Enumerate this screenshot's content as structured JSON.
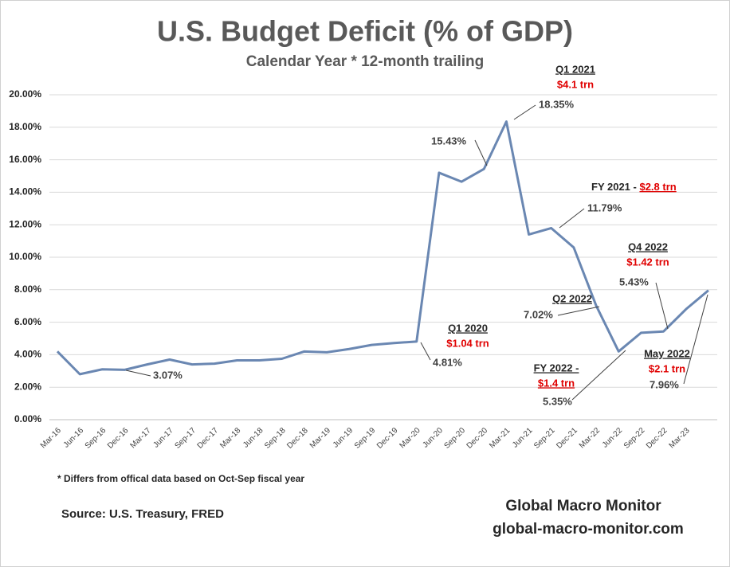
{
  "chart_data": {
    "type": "line",
    "title": "U.S. Budget Deficit (% of GDP)",
    "subtitle": "Calendar Year * 12-month trailing",
    "categories": [
      "Mar-16",
      "Jun-16",
      "Sep-16",
      "Dec-16",
      "Mar-17",
      "Jun-17",
      "Sep-17",
      "Dec-17",
      "Mar-18",
      "Jun-18",
      "Sep-18",
      "Dec-18",
      "Mar-19",
      "Jun-19",
      "Sep-19",
      "Dec-19",
      "Mar-20",
      "Jun-20",
      "Sep-20",
      "Dec-20",
      "Mar-21",
      "Jun-21",
      "Sep-21",
      "Dec-21",
      "Mar-22",
      "Jun-22",
      "Sep-22",
      "Dec-22",
      "Mar-23",
      null
    ],
    "values": [
      4.2,
      2.8,
      3.1,
      3.07,
      3.4,
      3.7,
      3.4,
      3.45,
      3.65,
      3.65,
      3.75,
      4.2,
      4.15,
      4.35,
      4.6,
      4.72,
      4.81,
      15.2,
      14.65,
      15.43,
      18.35,
      11.4,
      11.79,
      10.6,
      7.02,
      4.2,
      5.35,
      5.43,
      6.8,
      7.96
    ],
    "value_labels": [
      null,
      null,
      null,
      "3.07%",
      null,
      null,
      null,
      null,
      null,
      null,
      null,
      null,
      null,
      null,
      null,
      null,
      "4.81%",
      null,
      null,
      "15.43%",
      "18.35%",
      null,
      "11.79%",
      null,
      "7.02%",
      null,
      "5.35%",
      "5.43%",
      null,
      "7.96%"
    ],
    "color": "#6a87b2",
    "ylim": [
      0,
      20
    ],
    "yticks": [
      {
        "value": 0,
        "label": "0.00%"
      },
      {
        "value": 2,
        "label": "2.00%"
      },
      {
        "value": 4,
        "label": "4.00%"
      },
      {
        "value": 6,
        "label": "6.00%"
      },
      {
        "value": 8,
        "label": "8.00%"
      },
      {
        "value": 10,
        "label": "10.00%"
      },
      {
        "value": 12,
        "label": "12.00%"
      },
      {
        "value": 14,
        "label": "14.00%"
      },
      {
        "value": 16,
        "label": "16.00%"
      },
      {
        "value": 18,
        "label": "18.00%"
      },
      {
        "value": 20,
        "label": "20.00%"
      }
    ],
    "grid": true,
    "annotations": [
      {
        "label": "Q1 2021",
        "amount": "$4.1 trn"
      },
      {
        "label": "FY 2021 - ",
        "amount": "$2.8 trn"
      },
      {
        "label": "Q4 2022",
        "amount": "$1.42 trn"
      },
      {
        "label": "Q2 2022"
      },
      {
        "label": "Q1 2020",
        "amount": "$1.04 trn"
      },
      {
        "label": "FY 2022 -",
        "amount": "$1.4 trn"
      },
      {
        "label": "May 2022",
        "amount": "$2.1 trn"
      }
    ],
    "footnote": "* Differs from offical data based on Oct-Sep fiscal year",
    "source": "Source:  U.S. Treasury,  FRED",
    "brand": "Global Macro Monitor",
    "website": "global-macro-monitor.com"
  }
}
